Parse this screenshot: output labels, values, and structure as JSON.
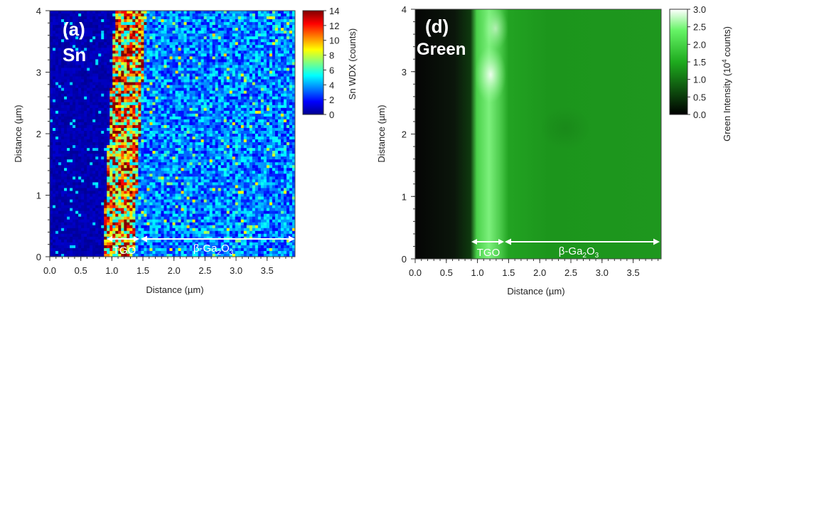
{
  "chart_data": [
    {
      "panel_label": "(a)",
      "element_label": "Sn",
      "type": "heatmap",
      "xlabel": "Distance (µm)",
      "ylabel": "Distance (µm)",
      "xlim": [
        0.0,
        3.95
      ],
      "ylim": [
        0,
        4
      ],
      "x_ticks": [
        "0.0",
        "0.5",
        "1.0",
        "1.5",
        "2.0",
        "2.5",
        "3.0",
        "3.5"
      ],
      "y_ticks": [
        "0",
        "1",
        "2",
        "3",
        "4"
      ],
      "colorbar": {
        "label": "Sn WDX (counts)",
        "range": [
          0,
          14
        ],
        "ticks": [
          "0",
          "2",
          "4",
          "6",
          "8",
          "10",
          "12",
          "14"
        ],
        "colormap": "jet"
      },
      "regions": [
        {
          "label": "TGO",
          "x_range": [
            0.95,
            1.45
          ],
          "mean_counts": 10
        },
        {
          "label_prefix": "β-Ga",
          "label_sub1": "2",
          "label_mid": "O",
          "label_sub2": "3",
          "x_range": [
            1.45,
            3.95
          ],
          "mean_counts": 3.5
        },
        {
          "label": "",
          "x_range": [
            0.0,
            0.95
          ],
          "mean_counts": 0.7
        }
      ]
    },
    {
      "panel_label": "(d)",
      "element_label": "Green",
      "type": "heatmap",
      "xlabel": "Distance (µm)",
      "ylabel": "Distance (µm)",
      "xlim": [
        0.0,
        3.95
      ],
      "ylim": [
        0,
        4
      ],
      "x_ticks": [
        "0.0",
        "0.5",
        "1.0",
        "1.5",
        "2.0",
        "2.5",
        "3.0",
        "3.5"
      ],
      "y_ticks": [
        "0",
        "1",
        "2",
        "3",
        "4"
      ],
      "colorbar": {
        "label_main": "Green Intensity (10",
        "label_sup": "4",
        "label_tail": " counts)",
        "range": [
          0.0,
          3.0
        ],
        "ticks": [
          "0.0",
          "0.5",
          "1.0",
          "1.5",
          "2.0",
          "2.5",
          "3.0"
        ],
        "colormap": "black-green-white"
      },
      "regions": [
        {
          "label": "TGO",
          "x_range": [
            0.95,
            1.45
          ],
          "mean_intensity": 2.4
        },
        {
          "label_prefix": "β-Ga",
          "label_sub1": "2",
          "label_mid": "O",
          "label_sub2": "3",
          "x_range": [
            1.45,
            3.95
          ],
          "mean_intensity": 1.5
        },
        {
          "label": "",
          "x_range": [
            0.0,
            0.95
          ],
          "mean_intensity": 0.05
        }
      ]
    }
  ]
}
